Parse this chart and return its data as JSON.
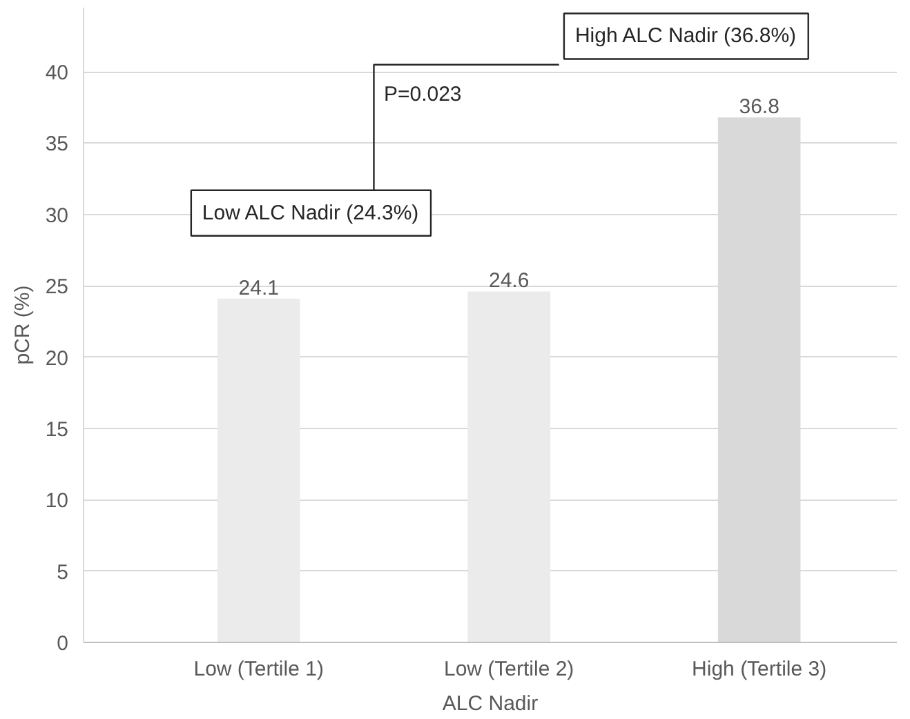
{
  "chart_data": {
    "type": "bar",
    "xlabel": "ALC Nadir",
    "ylabel": "pCR (%)",
    "categories": [
      "Low (Tertile 1)",
      "Low (Tertile 2)",
      "High (Tertile 3)"
    ],
    "values": [
      24.1,
      24.6,
      36.8
    ],
    "colors": [
      "#ebebeb",
      "#ebebeb",
      "#d9d9d9"
    ],
    "ylim": [
      0,
      44.5
    ],
    "yticks": [
      0,
      5,
      10,
      15,
      20,
      25,
      30,
      35,
      40
    ],
    "grid": "y",
    "data_labels": true,
    "annotations": [
      "Low ALC Nadir (24.3%)",
      "High ALC Nadir (36.8%)",
      "P=0.023"
    ]
  }
}
